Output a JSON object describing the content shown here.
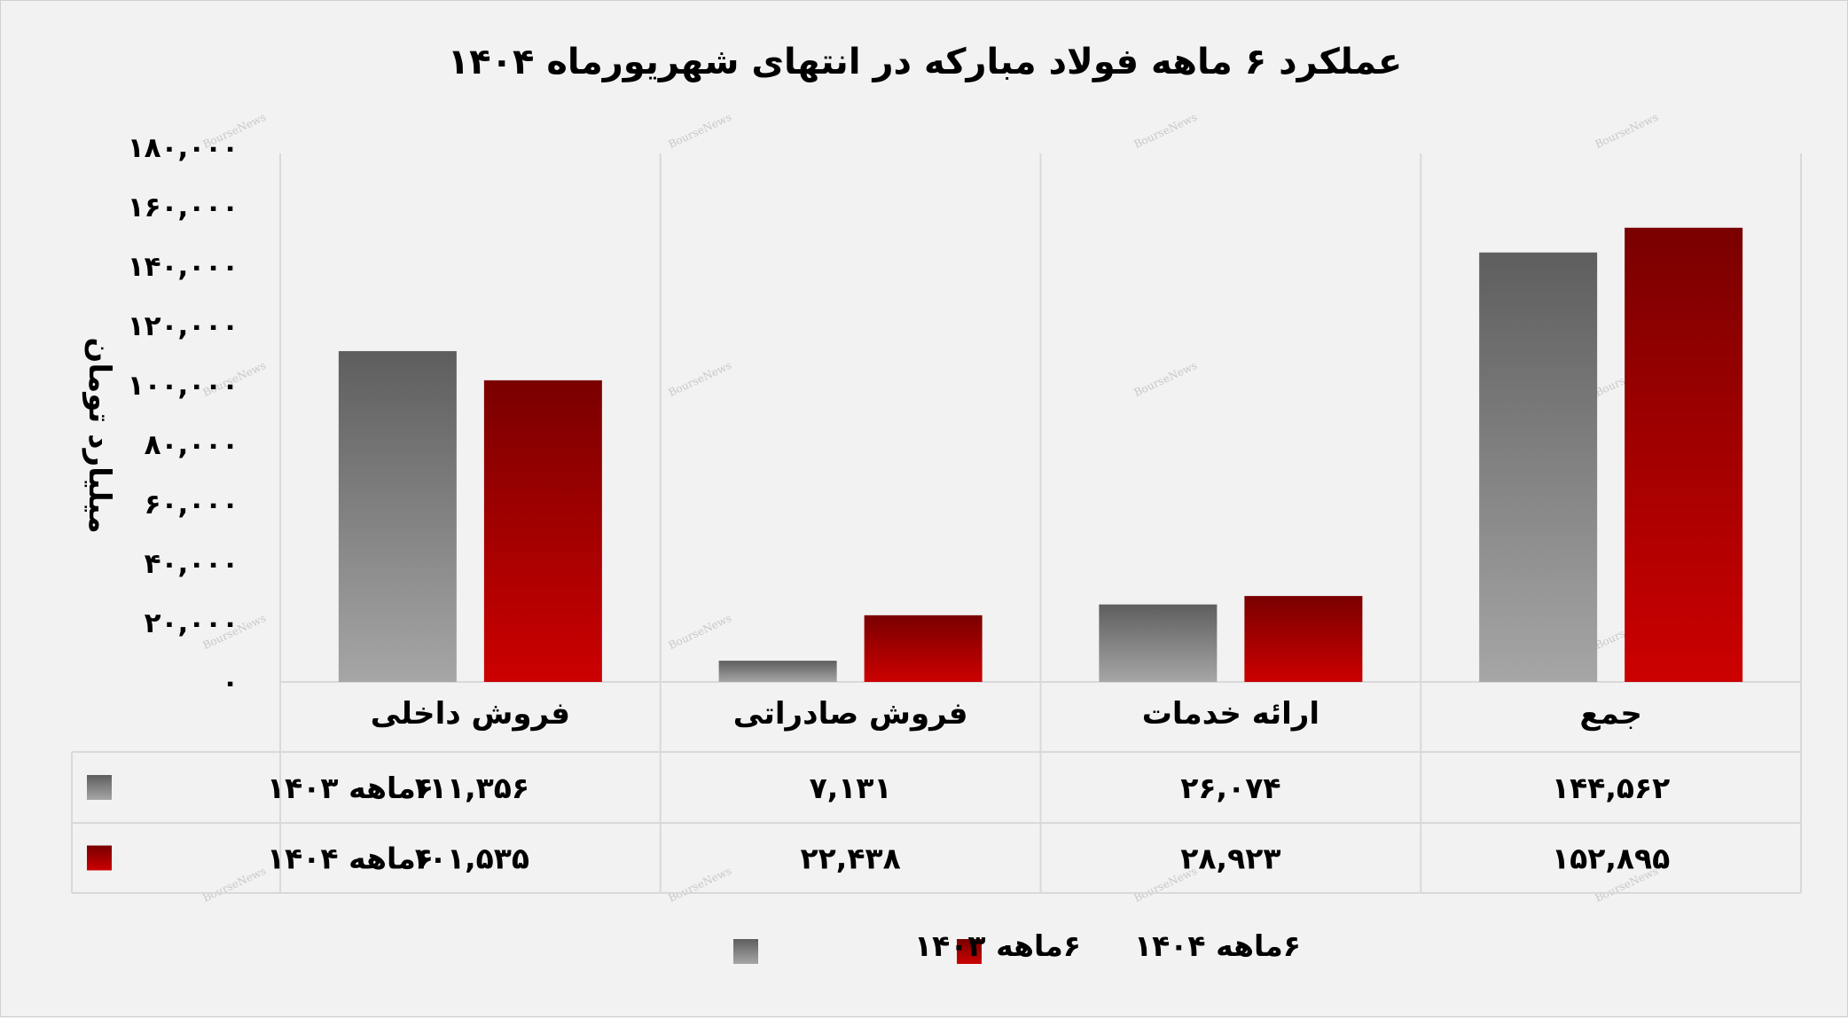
{
  "chart_data": {
    "type": "bar",
    "title": "عملکرد ۶ ماهه فولاد مبارکه در انتهای شهریورماه ۱۴۰۴",
    "ylabel": "میلیارد تومان",
    "xlabel": "",
    "ylim": [
      0,
      180000
    ],
    "y_ticks": [
      0,
      20000,
      40000,
      60000,
      80000,
      100000,
      120000,
      140000,
      160000,
      180000
    ],
    "y_tick_labels": [
      "۰",
      "۲۰,۰۰۰",
      "۴۰,۰۰۰",
      "۶۰,۰۰۰",
      "۸۰,۰۰۰",
      "۱۰۰,۰۰۰",
      "۱۲۰,۰۰۰",
      "۱۴۰,۰۰۰",
      "۱۶۰,۰۰۰",
      "۱۸۰,۰۰۰"
    ],
    "categories": [
      "فروش داخلی",
      "فروش صادراتی",
      "ارائه خدمات",
      "جمع"
    ],
    "series": [
      {
        "name": "۶ماهه ۱۴۰۳",
        "values": [
          111356,
          7131,
          26074,
          144562
        ],
        "value_labels": [
          "۱۱۱,۳۵۶",
          "۷,۱۳۱",
          "۲۶,۰۷۴",
          "۱۴۴,۵۶۲"
        ],
        "color_top": "#5e5e5e",
        "color_bottom": "#a6a6a6"
      },
      {
        "name": "۶ماهه ۱۴۰۴",
        "values": [
          101535,
          22438,
          28923,
          152895
        ],
        "value_labels": [
          "۱۰۱,۵۳۵",
          "۲۲,۴۳۸",
          "۲۸,۹۲۳",
          "۱۵۲,۸۹۵"
        ],
        "color_top": "#7a0000",
        "color_bottom": "#cc0000"
      }
    ],
    "grid": "vertical category separators",
    "legend_position": "bottom",
    "data_table": true
  },
  "watermark_text": "BourseNews"
}
